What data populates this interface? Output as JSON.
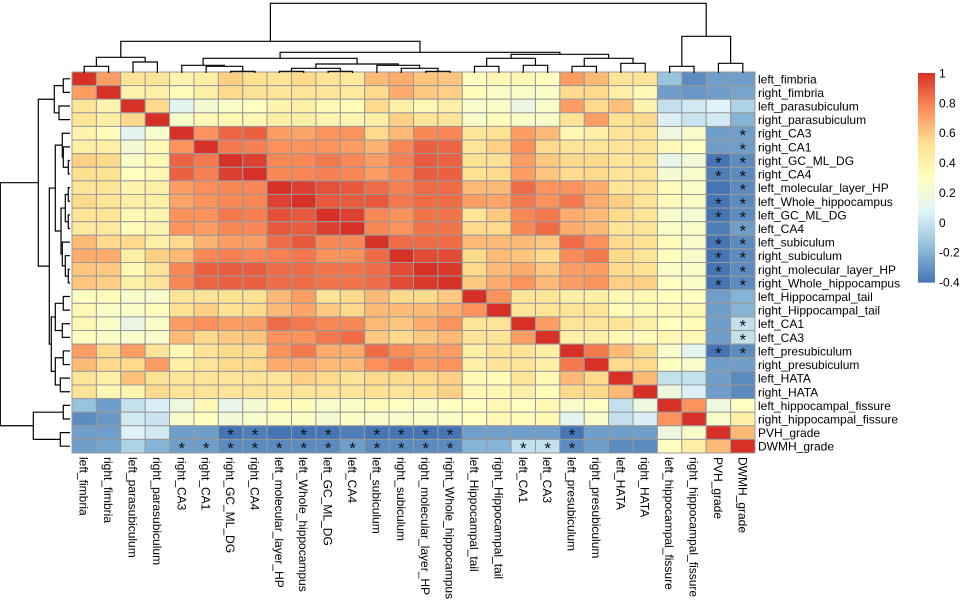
{
  "chart_data": {
    "type": "heatmap",
    "title": "",
    "labels": [
      "left_fimbria",
      "right_fimbria",
      "left_parasubiculum",
      "right_parasubiculum",
      "right_CA3",
      "right_CA1",
      "right_GC_ML_DG",
      "right_CA4",
      "left_molecular_layer_HP",
      "left_Whole_hippocampus",
      "left_GC_ML_DG",
      "left_CA4",
      "left_subiculum",
      "right_subiculum",
      "right_molecular_layer_HP",
      "right_Whole_hippocampus",
      "left_Hippocampal_tail",
      "right_Hippocampal_tail",
      "left_CA1",
      "left_CA3",
      "left_presubiculum",
      "right_presubiculum",
      "left_HATA",
      "right_HATA",
      "left_hippocampal_fissure",
      "right_hippocampal_fissure",
      "PVH_grade",
      "DWMH_grade"
    ],
    "values": [
      [
        1,
        0.72,
        0.5,
        0.5,
        0.38,
        0.42,
        0.58,
        0.53,
        0.5,
        0.55,
        0.5,
        0.46,
        0.64,
        0.68,
        0.61,
        0.61,
        0.3,
        0.35,
        0.35,
        0.3,
        0.72,
        0.64,
        0.5,
        0.5,
        -0.15,
        -0.33,
        -0.27,
        -0.27
      ],
      [
        0.72,
        1,
        0.38,
        0.42,
        0.33,
        0.42,
        0.55,
        0.52,
        0.5,
        0.5,
        0.5,
        0.47,
        0.55,
        0.68,
        0.6,
        0.58,
        0.33,
        0.27,
        0.27,
        0.27,
        0.55,
        0.55,
        0.42,
        0.35,
        -0.27,
        -0.29,
        -0.27,
        -0.25
      ],
      [
        0.5,
        0.38,
        1,
        0.55,
        0.1,
        0.22,
        0.27,
        0.3,
        0.38,
        0.42,
        0.35,
        0.33,
        0.55,
        0.42,
        0.35,
        0.42,
        0.25,
        0.27,
        0.15,
        0.25,
        0.72,
        0.55,
        0.62,
        0.38,
        -0.02,
        0.02,
        0.06,
        -0.08
      ],
      [
        0.5,
        0.42,
        0.55,
        1,
        0.25,
        0.35,
        0.35,
        0.35,
        0.42,
        0.42,
        0.38,
        0.38,
        0.42,
        0.58,
        0.5,
        0.5,
        0.25,
        0.33,
        0.27,
        0.25,
        0.5,
        0.72,
        0.52,
        0.55,
        0.05,
        0,
        0.02,
        -0.2
      ],
      [
        0.38,
        0.33,
        0.1,
        0.25,
        1,
        0.75,
        0.87,
        0.88,
        0.72,
        0.7,
        0.75,
        0.75,
        0.55,
        0.64,
        0.78,
        0.78,
        0.5,
        0.52,
        0.72,
        0.64,
        0.35,
        0.42,
        0.5,
        0.5,
        0.17,
        0.25,
        -0.27,
        -0.27
      ],
      [
        0.42,
        0.42,
        0.22,
        0.35,
        0.75,
        1,
        0.82,
        0.8,
        0.76,
        0.75,
        0.75,
        0.72,
        0.66,
        0.78,
        0.88,
        0.87,
        0.5,
        0.58,
        0.76,
        0.55,
        0.5,
        0.5,
        0.5,
        0.5,
        0.35,
        0.3,
        -0.27,
        -0.27
      ],
      [
        0.58,
        0.55,
        0.27,
        0.35,
        0.87,
        0.82,
        1,
        0.96,
        0.78,
        0.78,
        0.82,
        0.78,
        0.72,
        0.8,
        0.89,
        0.88,
        0.52,
        0.52,
        0.72,
        0.6,
        0.55,
        0.55,
        0.5,
        0.5,
        0.13,
        0.2,
        -0.4,
        -0.33
      ],
      [
        0.53,
        0.52,
        0.3,
        0.35,
        0.88,
        0.8,
        0.96,
        1,
        0.78,
        0.78,
        0.8,
        0.78,
        0.72,
        0.78,
        0.89,
        0.88,
        0.52,
        0.55,
        0.72,
        0.61,
        0.55,
        0.55,
        0.5,
        0.5,
        0.22,
        0.25,
        -0.37,
        -0.33
      ],
      [
        0.5,
        0.5,
        0.38,
        0.42,
        0.72,
        0.76,
        0.78,
        0.78,
        1,
        0.96,
        0.92,
        0.9,
        0.85,
        0.8,
        0.85,
        0.85,
        0.64,
        0.64,
        0.85,
        0.75,
        0.75,
        0.68,
        0.5,
        0.5,
        0.33,
        0.27,
        -0.4,
        -0.33
      ],
      [
        0.55,
        0.5,
        0.42,
        0.42,
        0.7,
        0.75,
        0.78,
        0.78,
        0.96,
        1,
        0.9,
        0.89,
        0.9,
        0.82,
        0.85,
        0.85,
        0.72,
        0.7,
        0.82,
        0.75,
        0.82,
        0.68,
        0.58,
        0.5,
        0.33,
        0.27,
        -0.4,
        -0.33
      ],
      [
        0.5,
        0.5,
        0.35,
        0.38,
        0.75,
        0.75,
        0.82,
        0.8,
        0.92,
        0.9,
        1,
        0.96,
        0.78,
        0.75,
        0.83,
        0.83,
        0.5,
        0.6,
        0.78,
        0.82,
        0.68,
        0.64,
        0.55,
        0.5,
        0.25,
        0.22,
        -0.4,
        -0.33
      ],
      [
        0.46,
        0.47,
        0.33,
        0.38,
        0.75,
        0.72,
        0.78,
        0.78,
        0.9,
        0.89,
        0.96,
        1,
        0.78,
        0.75,
        0.83,
        0.83,
        0.55,
        0.55,
        0.78,
        0.85,
        0.68,
        0.64,
        0.5,
        0.5,
        0.27,
        0.27,
        -0.37,
        -0.27
      ],
      [
        0.64,
        0.55,
        0.55,
        0.42,
        0.55,
        0.66,
        0.72,
        0.72,
        0.85,
        0.9,
        0.78,
        0.78,
        1,
        0.85,
        0.85,
        0.85,
        0.64,
        0.64,
        0.64,
        0.6,
        0.85,
        0.76,
        0.55,
        0.52,
        0.33,
        0.25,
        -0.4,
        -0.33
      ],
      [
        0.68,
        0.68,
        0.42,
        0.58,
        0.64,
        0.78,
        0.8,
        0.78,
        0.8,
        0.82,
        0.75,
        0.75,
        0.85,
        1,
        0.93,
        0.93,
        0.55,
        0.64,
        0.61,
        0.55,
        0.77,
        0.82,
        0.55,
        0.5,
        0.3,
        0.25,
        -0.4,
        -0.33
      ],
      [
        0.61,
        0.6,
        0.35,
        0.5,
        0.78,
        0.88,
        0.89,
        0.89,
        0.85,
        0.85,
        0.83,
        0.83,
        0.85,
        0.93,
        1,
        0.98,
        0.55,
        0.64,
        0.68,
        0.6,
        0.72,
        0.72,
        0.55,
        0.52,
        0.27,
        0.27,
        -0.4,
        -0.33
      ],
      [
        0.61,
        0.58,
        0.42,
        0.5,
        0.78,
        0.87,
        0.88,
        0.88,
        0.85,
        0.85,
        0.83,
        0.83,
        0.85,
        0.93,
        0.98,
        1,
        0.6,
        0.68,
        0.75,
        0.64,
        0.72,
        0.75,
        0.58,
        0.58,
        0.3,
        0.27,
        -0.4,
        -0.33
      ],
      [
        0.3,
        0.33,
        0.25,
        0.25,
        0.5,
        0.5,
        0.52,
        0.52,
        0.64,
        0.72,
        0.5,
        0.55,
        0.64,
        0.55,
        0.55,
        0.6,
        1,
        0.75,
        0.5,
        0.5,
        0.42,
        0.42,
        0.35,
        0.35,
        0.3,
        0.3,
        -0.27,
        -0.2
      ],
      [
        0.35,
        0.27,
        0.27,
        0.33,
        0.52,
        0.58,
        0.52,
        0.55,
        0.64,
        0.7,
        0.6,
        0.55,
        0.64,
        0.64,
        0.64,
        0.68,
        0.75,
        1,
        0.5,
        0.5,
        0.5,
        0.5,
        0.33,
        0.35,
        0.35,
        0.35,
        -0.27,
        -0.2
      ],
      [
        0.35,
        0.27,
        0.15,
        0.27,
        0.72,
        0.76,
        0.72,
        0.72,
        0.85,
        0.82,
        0.78,
        0.78,
        0.64,
        0.61,
        0.68,
        0.75,
        0.5,
        0.5,
        1,
        0.72,
        0.5,
        0.5,
        0.5,
        0.42,
        0.3,
        0.33,
        -0.27,
        -0.02
      ],
      [
        0.3,
        0.27,
        0.25,
        0.25,
        0.64,
        0.55,
        0.6,
        0.61,
        0.75,
        0.75,
        0.82,
        0.85,
        0.6,
        0.55,
        0.6,
        0.64,
        0.5,
        0.5,
        0.72,
        1,
        0.42,
        0.42,
        0.35,
        0.33,
        0.35,
        0.35,
        -0.27,
        -0.02
      ],
      [
        0.72,
        0.55,
        0.72,
        0.5,
        0.35,
        0.5,
        0.55,
        0.55,
        0.75,
        0.82,
        0.68,
        0.68,
        0.85,
        0.77,
        0.72,
        0.72,
        0.42,
        0.5,
        0.5,
        0.42,
        1,
        0.82,
        0.64,
        0.55,
        0.25,
        0.1,
        -0.4,
        -0.33
      ],
      [
        0.64,
        0.55,
        0.55,
        0.72,
        0.42,
        0.5,
        0.55,
        0.55,
        0.68,
        0.68,
        0.64,
        0.64,
        0.76,
        0.82,
        0.72,
        0.75,
        0.42,
        0.5,
        0.5,
        0.42,
        0.82,
        1,
        0.55,
        0.55,
        0.3,
        0.25,
        -0.27,
        -0.27
      ],
      [
        0.5,
        0.42,
        0.62,
        0.52,
        0.5,
        0.5,
        0.5,
        0.5,
        0.5,
        0.58,
        0.55,
        0.5,
        0.55,
        0.55,
        0.55,
        0.58,
        0.35,
        0.33,
        0.5,
        0.35,
        0.64,
        0.55,
        1,
        0.64,
        -0.02,
        -0.02,
        -0.27,
        -0.33
      ],
      [
        0.5,
        0.35,
        0.38,
        0.55,
        0.5,
        0.5,
        0.5,
        0.5,
        0.5,
        0.5,
        0.5,
        0.5,
        0.52,
        0.5,
        0.52,
        0.58,
        0.35,
        0.35,
        0.42,
        0.33,
        0.55,
        0.55,
        0.64,
        1,
        0.17,
        0.05,
        -0.27,
        -0.33
      ],
      [
        -0.15,
        -0.27,
        -0.02,
        0.05,
        0.17,
        0.35,
        0.13,
        0.22,
        0.33,
        0.33,
        0.25,
        0.27,
        0.33,
        0.3,
        0.27,
        0.3,
        0.3,
        0.35,
        0.3,
        0.35,
        0.25,
        0.3,
        -0.02,
        0.17,
        1,
        0.75,
        0.17,
        0.3
      ],
      [
        -0.33,
        -0.29,
        0.02,
        0,
        0.25,
        0.3,
        0.2,
        0.25,
        0.27,
        0.27,
        0.22,
        0.27,
        0.25,
        0.25,
        0.27,
        0.27,
        0.3,
        0.35,
        0.33,
        0.35,
        0.1,
        0.25,
        -0.02,
        0.05,
        0.75,
        1,
        0.25,
        0.42
      ],
      [
        -0.27,
        -0.27,
        0.06,
        0.02,
        -0.27,
        -0.27,
        -0.4,
        -0.37,
        -0.4,
        -0.4,
        -0.4,
        -0.37,
        -0.4,
        -0.4,
        -0.4,
        -0.4,
        -0.27,
        -0.27,
        -0.27,
        -0.27,
        -0.4,
        -0.27,
        -0.27,
        -0.27,
        0.17,
        0.25,
        1,
        0.64
      ],
      [
        -0.27,
        -0.25,
        -0.08,
        -0.2,
        -0.27,
        -0.27,
        -0.33,
        -0.33,
        -0.33,
        -0.33,
        -0.33,
        -0.27,
        -0.33,
        -0.33,
        -0.33,
        -0.33,
        -0.2,
        -0.2,
        -0.02,
        -0.02,
        -0.33,
        -0.27,
        -0.33,
        -0.33,
        0.3,
        0.42,
        0.64,
        1
      ]
    ],
    "significance_marker": "*",
    "significant": {
      "PVH_grade": [
        "right_GC_ML_DG",
        "right_CA4",
        "left_Whole_hippocampus",
        "left_GC_ML_DG",
        "left_subiculum",
        "right_subiculum",
        "right_molecular_layer_HP",
        "right_Whole_hippocampus",
        "left_presubiculum"
      ],
      "DWMH_grade": [
        "right_CA3",
        "right_CA1",
        "right_GC_ML_DG",
        "right_CA4",
        "left_molecular_layer_HP",
        "left_Whole_hippocampus",
        "left_GC_ML_DG",
        "left_CA4",
        "left_subiculum",
        "right_subiculum",
        "right_molecular_layer_HP",
        "right_Whole_hippocampus",
        "left_CA1",
        "left_CA3",
        "left_presubiculum"
      ]
    },
    "color_range": [
      -0.4,
      1
    ],
    "colors": [
      "#4575B4",
      "#91BFDB",
      "#E0F3F8",
      "#FFFFBF",
      "#FEE090",
      "#FC8D59",
      "#D73027"
    ],
    "legend": {
      "placement": "right",
      "ticks": [
        "1",
        "0.8",
        "0.6",
        "0.4",
        "0.2",
        "0",
        "-0.2",
        "-0.4"
      ],
      "tick_values": [
        1,
        0.8,
        0.6,
        0.4,
        0.2,
        0,
        -0.2,
        -0.4
      ]
    },
    "dendrograms": {
      "rows": true,
      "columns": true
    },
    "cell_border_color": "#999999"
  }
}
